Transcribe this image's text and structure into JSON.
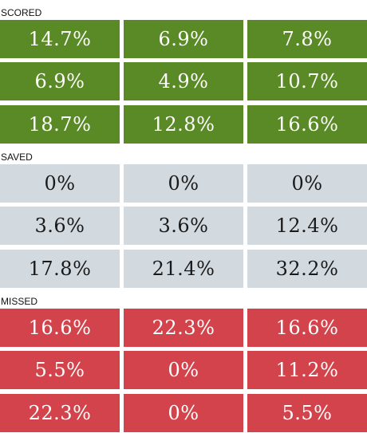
{
  "sections": [
    {
      "label": "SCORED",
      "color": "#5a8a25",
      "rows": [
        [
          "14.7%",
          "6.9%",
          "7.8%"
        ],
        [
          "6.9%",
          "4.9%",
          "10.7%"
        ],
        [
          "18.7%",
          "12.8%",
          "16.6%"
        ]
      ]
    },
    {
      "label": "SAVED",
      "color": "#d2d9df",
      "rows": [
        [
          "0%",
          "0%",
          "0%"
        ],
        [
          "3.6%",
          "3.6%",
          "12.4%"
        ],
        [
          "17.8%",
          "21.4%",
          "32.2%"
        ]
      ]
    },
    {
      "label": "MISSED",
      "color": "#d3434b",
      "rows": [
        [
          "16.6%",
          "22.3%",
          "16.6%"
        ],
        [
          "5.5%",
          "0%",
          "11.2%"
        ],
        [
          "22.3%",
          "0%",
          "5.5%"
        ]
      ]
    }
  ]
}
